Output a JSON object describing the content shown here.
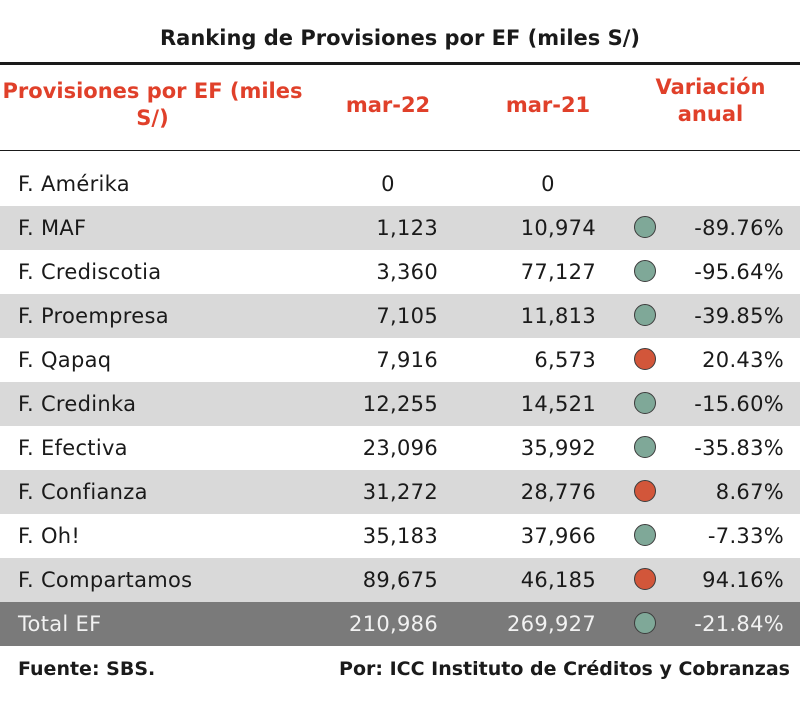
{
  "title": "Ranking de Provisiones por EF (miles S/)",
  "header": {
    "col1": "Provisiones por EF (miles S/)",
    "col2": "mar-22",
    "col3": "mar-21",
    "col4": "Variación anual"
  },
  "colors": {
    "header_red": "#e0402a",
    "dot_green": "#7fa898",
    "dot_red": "#d2563a",
    "row_shade": "#d9d9d9",
    "total_shade": "#7a7a7a"
  },
  "rows": [
    {
      "name": "F. Amérika",
      "mar22": "0",
      "mar21": "0",
      "indicator": "",
      "variation": ""
    },
    {
      "name": "F. MAF",
      "mar22": "1,123",
      "mar21": "10,974",
      "indicator": "green",
      "variation": "-89.76%"
    },
    {
      "name": "F. Crediscotia",
      "mar22": "3,360",
      "mar21": "77,127",
      "indicator": "green",
      "variation": "-95.64%"
    },
    {
      "name": "F. Proempresa",
      "mar22": "7,105",
      "mar21": "11,813",
      "indicator": "green",
      "variation": "-39.85%"
    },
    {
      "name": "F. Qapaq",
      "mar22": "7,916",
      "mar21": "6,573",
      "indicator": "red",
      "variation": "20.43%"
    },
    {
      "name": "F. Credinka",
      "mar22": "12,255",
      "mar21": "14,521",
      "indicator": "green",
      "variation": "-15.60%"
    },
    {
      "name": "F. Efectiva",
      "mar22": "23,096",
      "mar21": "35,992",
      "indicator": "green",
      "variation": "-35.83%"
    },
    {
      "name": "F. Confianza",
      "mar22": "31,272",
      "mar21": "28,776",
      "indicator": "red",
      "variation": "8.67%"
    },
    {
      "name": "F. Oh!",
      "mar22": "35,183",
      "mar21": "37,966",
      "indicator": "green",
      "variation": "-7.33%"
    },
    {
      "name": "F. Compartamos",
      "mar22": "89,675",
      "mar21": "46,185",
      "indicator": "red",
      "variation": "94.16%"
    }
  ],
  "total": {
    "name": "Total EF",
    "mar22": "210,986",
    "mar21": "269,927",
    "indicator": "green",
    "variation": "-21.84%"
  },
  "footer": {
    "source": "Fuente: SBS.",
    "credit": "Por: ICC Instituto de Créditos y Cobranzas"
  }
}
